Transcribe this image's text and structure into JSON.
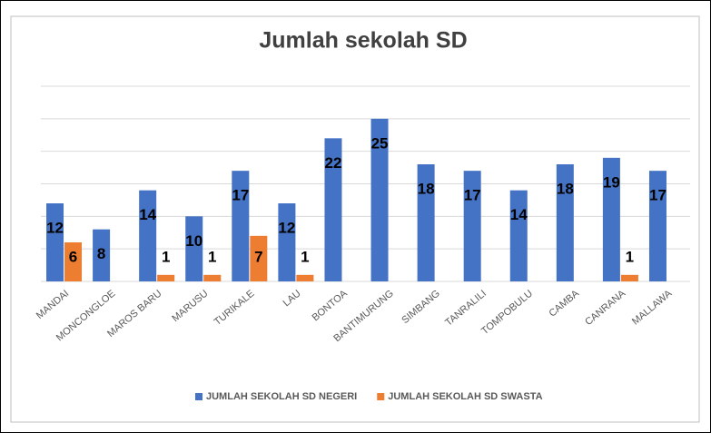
{
  "chart_data": {
    "type": "bar",
    "title": "Jumlah sekolah SD",
    "categories": [
      "MANDAI",
      "MONCONGLOE",
      "MAROS BARU",
      "MARUSU",
      "TURIKALE",
      "LAU",
      "BONTOA",
      "BANTIMURUNG",
      "SIMBANG",
      "TANRALILI",
      "TOMPOBULU",
      "CAMBA",
      "CANRANA",
      "MALLAWA"
    ],
    "series": [
      {
        "name": "JUMLAH SEKOLAH SD NEGERI",
        "color": "#4472c4",
        "values": [
          12,
          8,
          14,
          10,
          17,
          12,
          22,
          25,
          18,
          17,
          14,
          18,
          19,
          17
        ]
      },
      {
        "name": "JUMLAH SEKOLAH SD SWASTA",
        "color": "#ed7d31",
        "values": [
          6,
          null,
          1,
          1,
          7,
          1,
          null,
          null,
          null,
          null,
          null,
          null,
          1,
          null
        ]
      }
    ],
    "ylim": [
      0,
      30
    ],
    "yticks": [
      0,
      5,
      10,
      15,
      20,
      25,
      30
    ],
    "grid": true,
    "legend": "bottom"
  }
}
